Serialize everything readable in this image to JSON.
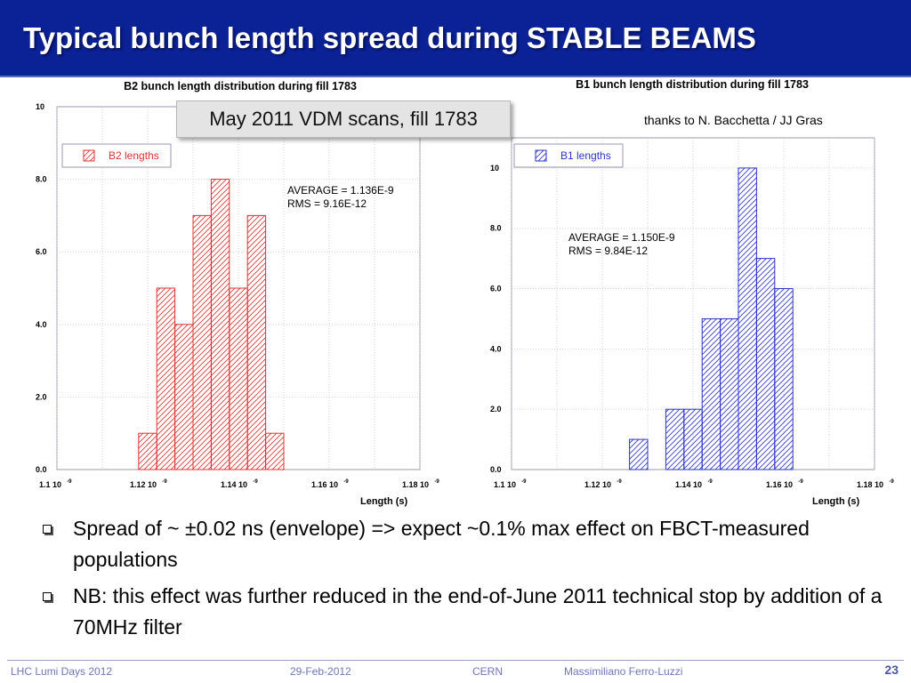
{
  "slide": {
    "title": "Typical bunch length spread during STABLE BEAMS",
    "callout": "May 2011 VDM scans, fill 1783",
    "credit": "thanks to N. Bacchetta / JJ Gras",
    "bullets": [
      "Spread of ~ ±0.02 ns (envelope)  => expect ~0.1% max effect on FBCT-measured populations",
      "NB: this effect was further reduced in the end-of-June 2011 technical stop by addition of a 70MHz filter"
    ],
    "footer": {
      "event": "LHC Lumi Days 2012",
      "date": "29-Feb-2012",
      "org": "CERN",
      "author": "Massimiliano Ferro-Luzzi",
      "page": "23"
    }
  },
  "colors": {
    "title_bg": "#0b2196",
    "b2": "#e03030",
    "b1": "#2b33c8"
  },
  "chart_data": [
    {
      "type": "bar",
      "title": "B2 bunch length distribution during fill 1783",
      "xlabel": "Length (s)",
      "ylabel": "",
      "x_ticks": [
        {
          "value": 1.1,
          "text": "1.1 10",
          "exp": "-9"
        },
        {
          "value": 1.12,
          "text": "1.12 10",
          "exp": "-9"
        },
        {
          "value": 1.14,
          "text": "1.14 10",
          "exp": "-9"
        },
        {
          "value": 1.16,
          "text": "1.16 10",
          "exp": "-9"
        },
        {
          "value": 1.18,
          "text": "1.18 10",
          "exp": "-9"
        }
      ],
      "y_ticks": [
        {
          "value": 0,
          "text": "0.0"
        },
        {
          "value": 2,
          "text": "2.0"
        },
        {
          "value": 4,
          "text": "4.0"
        },
        {
          "value": 6,
          "text": "6.0"
        },
        {
          "value": 8,
          "text": "8.0"
        },
        {
          "value": 10,
          "text": "10"
        }
      ],
      "xlim": [
        1.1,
        1.18
      ],
      "ylim": [
        0,
        10
      ],
      "bin_width": 0.004,
      "bins": [
        {
          "x": 1.118,
          "count": 1
        },
        {
          "x": 1.122,
          "count": 5
        },
        {
          "x": 1.126,
          "count": 4
        },
        {
          "x": 1.13,
          "count": 7
        },
        {
          "x": 1.134,
          "count": 8
        },
        {
          "x": 1.138,
          "count": 5
        },
        {
          "x": 1.142,
          "count": 7
        },
        {
          "x": 1.146,
          "count": 1
        }
      ],
      "legend": "B2 lengths",
      "legend_position": "top-left",
      "stats": [
        "AVERAGE = 1.136E-9",
        "RMS = 9.16E-12"
      ],
      "color": "#e03030",
      "grid": true
    },
    {
      "type": "bar",
      "title": "B1 bunch length distribution during fill 1783",
      "xlabel": "Length (s)",
      "ylabel": "",
      "x_ticks": [
        {
          "value": 1.1,
          "text": "1.1 10",
          "exp": "-9"
        },
        {
          "value": 1.12,
          "text": "1.12 10",
          "exp": "-9"
        },
        {
          "value": 1.14,
          "text": "1.14 10",
          "exp": "-9"
        },
        {
          "value": 1.16,
          "text": "1.16 10",
          "exp": "-9"
        },
        {
          "value": 1.18,
          "text": "1.18 10",
          "exp": "-9"
        }
      ],
      "y_ticks": [
        {
          "value": 0,
          "text": "0.0"
        },
        {
          "value": 2,
          "text": "2.0"
        },
        {
          "value": 4,
          "text": "4.0"
        },
        {
          "value": 6,
          "text": "6.0"
        },
        {
          "value": 8,
          "text": "8.0"
        },
        {
          "value": 10,
          "text": "10"
        }
      ],
      "xlim": [
        1.1,
        1.18
      ],
      "ylim": [
        0,
        11
      ],
      "bin_width": 0.004,
      "bins": [
        {
          "x": 1.126,
          "count": 1
        },
        {
          "x": 1.134,
          "count": 2
        },
        {
          "x": 1.138,
          "count": 2
        },
        {
          "x": 1.142,
          "count": 5
        },
        {
          "x": 1.146,
          "count": 5
        },
        {
          "x": 1.15,
          "count": 10
        },
        {
          "x": 1.154,
          "count": 7
        },
        {
          "x": 1.158,
          "count": 6
        }
      ],
      "legend": "B1 lengths",
      "legend_position": "top-left",
      "stats": [
        "AVERAGE = 1.150E-9",
        "RMS = 9.84E-12"
      ],
      "color": "#2b33c8",
      "grid": true
    }
  ]
}
